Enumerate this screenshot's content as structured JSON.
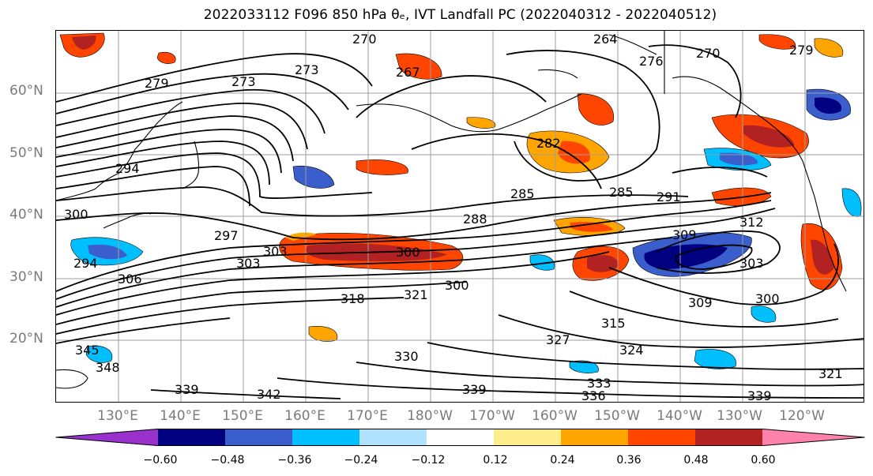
{
  "title": "2022033112 F096 850 hPa θₑ, IVT Landfall PC (2022040312 - 2022040512)",
  "map": {
    "lat_labels": [
      "60°N",
      "50°N",
      "40°N",
      "30°N",
      "20°N"
    ],
    "lon_labels": [
      "130°E",
      "140°E",
      "150°E",
      "160°E",
      "170°E",
      "180°W",
      "170°W",
      "160°W",
      "150°W",
      "140°W",
      "130°W",
      "120°W"
    ],
    "contour_labels": [
      "279",
      "273",
      "273",
      "270",
      "264",
      "267",
      "276",
      "270",
      "279",
      "282",
      "285",
      "285",
      "288",
      "291",
      "294",
      "297",
      "300",
      "303",
      "306",
      "309",
      "312",
      "300",
      "303",
      "300",
      "309",
      "315",
      "318",
      "321",
      "327",
      "324",
      "330",
      "333",
      "336",
      "339",
      "339",
      "342",
      "345",
      "348",
      "339",
      "321",
      "294",
      "303",
      "300"
    ]
  },
  "colorbar": {
    "colors": [
      "#9932cc",
      "#000080",
      "#3a5fcd",
      "#00bfff",
      "#b0e2ff",
      "#ffffff",
      "#ffec8b",
      "#ffa500",
      "#ff4500",
      "#b22222",
      "#ff82ab"
    ],
    "tick_labels": [
      "−0.60",
      "−0.48",
      "−0.36",
      "−0.24",
      "−0.12",
      "0.12",
      "0.24",
      "0.36",
      "0.48",
      "0.60"
    ]
  }
}
